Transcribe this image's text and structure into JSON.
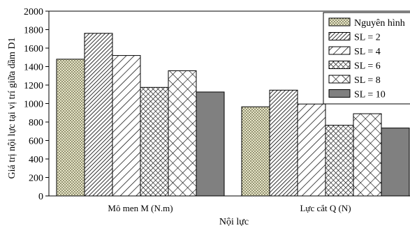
{
  "chart_data": {
    "type": "bar",
    "xlabel": "Nội lực",
    "ylabel": "Giá trị nội lực tại vị trí giữa dầm D1",
    "ylim": [
      0,
      2000
    ],
    "ytick_step": 200,
    "categories": [
      "Mô men M (N.m)",
      "Lực cắt Q (N)"
    ],
    "series": [
      {
        "name": "Nguyên hình",
        "pattern": "dots",
        "values": [
          1480,
          965
        ]
      },
      {
        "name": "SL = 2",
        "pattern": "dense-diagonal",
        "values": [
          1760,
          1145
        ]
      },
      {
        "name": "SL = 4",
        "pattern": "sparse-diagonal",
        "values": [
          1520,
          995
        ]
      },
      {
        "name": "SL = 6",
        "pattern": "dense-crosshatch",
        "values": [
          1175,
          765
        ]
      },
      {
        "name": "SL = 8",
        "pattern": "sparse-crosshatch",
        "values": [
          1355,
          890
        ]
      },
      {
        "name": "SL = 10",
        "pattern": "solid-gray",
        "values": [
          1125,
          735
        ]
      }
    ],
    "legend_position": "top-right",
    "grid": false
  }
}
